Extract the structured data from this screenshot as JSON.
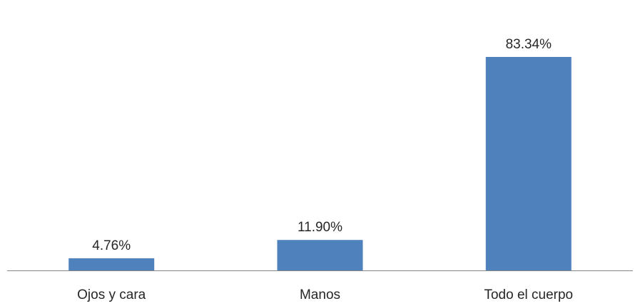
{
  "chart_data": {
    "type": "bar",
    "categories": [
      "Ojos y cara",
      "Manos",
      "Todo el cuerpo"
    ],
    "values": [
      4.76,
      11.9,
      83.34
    ],
    "data_labels": [
      "4.76%",
      "11.90%",
      "83.34%"
    ],
    "ylim": [
      0,
      100
    ],
    "grid": false,
    "legend": "none",
    "y_axis_visible": false,
    "colors": {
      "bar": "#4F81BD",
      "axis": "#868686",
      "text": "#262626",
      "background": "#FFFFFF"
    }
  }
}
